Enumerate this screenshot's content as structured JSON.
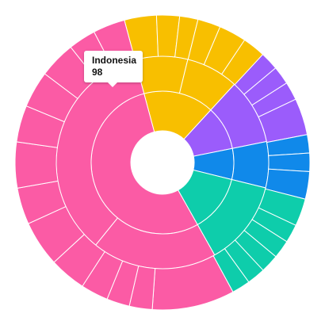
{
  "chart_data": {
    "type": "sunburst",
    "colors": {
      "pink": "#fb5ba5",
      "yellow": "#f8bf00",
      "purple": "#9b5cfb",
      "blue": "#1089ea",
      "teal": "#0ecdab"
    },
    "rings": [
      {
        "level": 1,
        "segments": [
          {
            "color": "yellow",
            "value": 16
          },
          {
            "color": "purple",
            "value": 10
          },
          {
            "color": "blue",
            "value": 7
          },
          {
            "color": "teal",
            "value": 13
          },
          {
            "color": "pink",
            "value": 54
          }
        ]
      },
      {
        "level": 2,
        "segments": [
          {
            "color": "yellow",
            "value": 8
          },
          {
            "color": "yellow",
            "value": 8
          },
          {
            "color": "purple",
            "value": 10
          },
          {
            "color": "blue",
            "value": 7
          },
          {
            "color": "teal",
            "value": 13
          },
          {
            "color": "pink",
            "value": 19
          },
          {
            "color": "pink",
            "value": 35
          }
        ]
      },
      {
        "level": 3,
        "segments": [
          {
            "color": "yellow",
            "value": 3.5
          },
          {
            "color": "yellow",
            "value": 2.5
          },
          {
            "color": "yellow",
            "value": 2
          },
          {
            "color": "yellow",
            "value": 2.5
          },
          {
            "color": "yellow",
            "value": 3
          },
          {
            "color": "yellow",
            "value": 2.5
          },
          {
            "color": "purple",
            "value": 2
          },
          {
            "color": "purple",
            "value": 2
          },
          {
            "color": "purple",
            "value": 2
          },
          {
            "color": "purple",
            "value": 4
          },
          {
            "color": "blue",
            "value": 2
          },
          {
            "color": "blue",
            "value": 2
          },
          {
            "color": "blue",
            "value": 3
          },
          {
            "color": "teal",
            "value": 3
          },
          {
            "color": "teal",
            "value": 2
          },
          {
            "color": "teal",
            "value": 2
          },
          {
            "color": "teal",
            "value": 2
          },
          {
            "color": "teal",
            "value": 2
          },
          {
            "color": "teal",
            "value": 2
          },
          {
            "color": "pink",
            "value": 9
          },
          {
            "color": "pink",
            "value": 2.5
          },
          {
            "color": "pink",
            "value": 2.5
          },
          {
            "color": "pink",
            "value": 3
          },
          {
            "color": "pink",
            "value": 4
          },
          {
            "color": "pink",
            "value": 5
          },
          {
            "color": "pink",
            "value": 4
          },
          {
            "color": "pink",
            "value": 5
          },
          {
            "color": "pink",
            "value": 4
          },
          {
            "color": "pink",
            "value": 4
          },
          {
            "color": "pink",
            "value": 4
          },
          {
            "color": "pink",
            "value": 3
          },
          {
            "color": "pink",
            "value": 3.5
          }
        ]
      }
    ],
    "tooltip": {
      "label": "Indonesia",
      "value": "98"
    }
  }
}
